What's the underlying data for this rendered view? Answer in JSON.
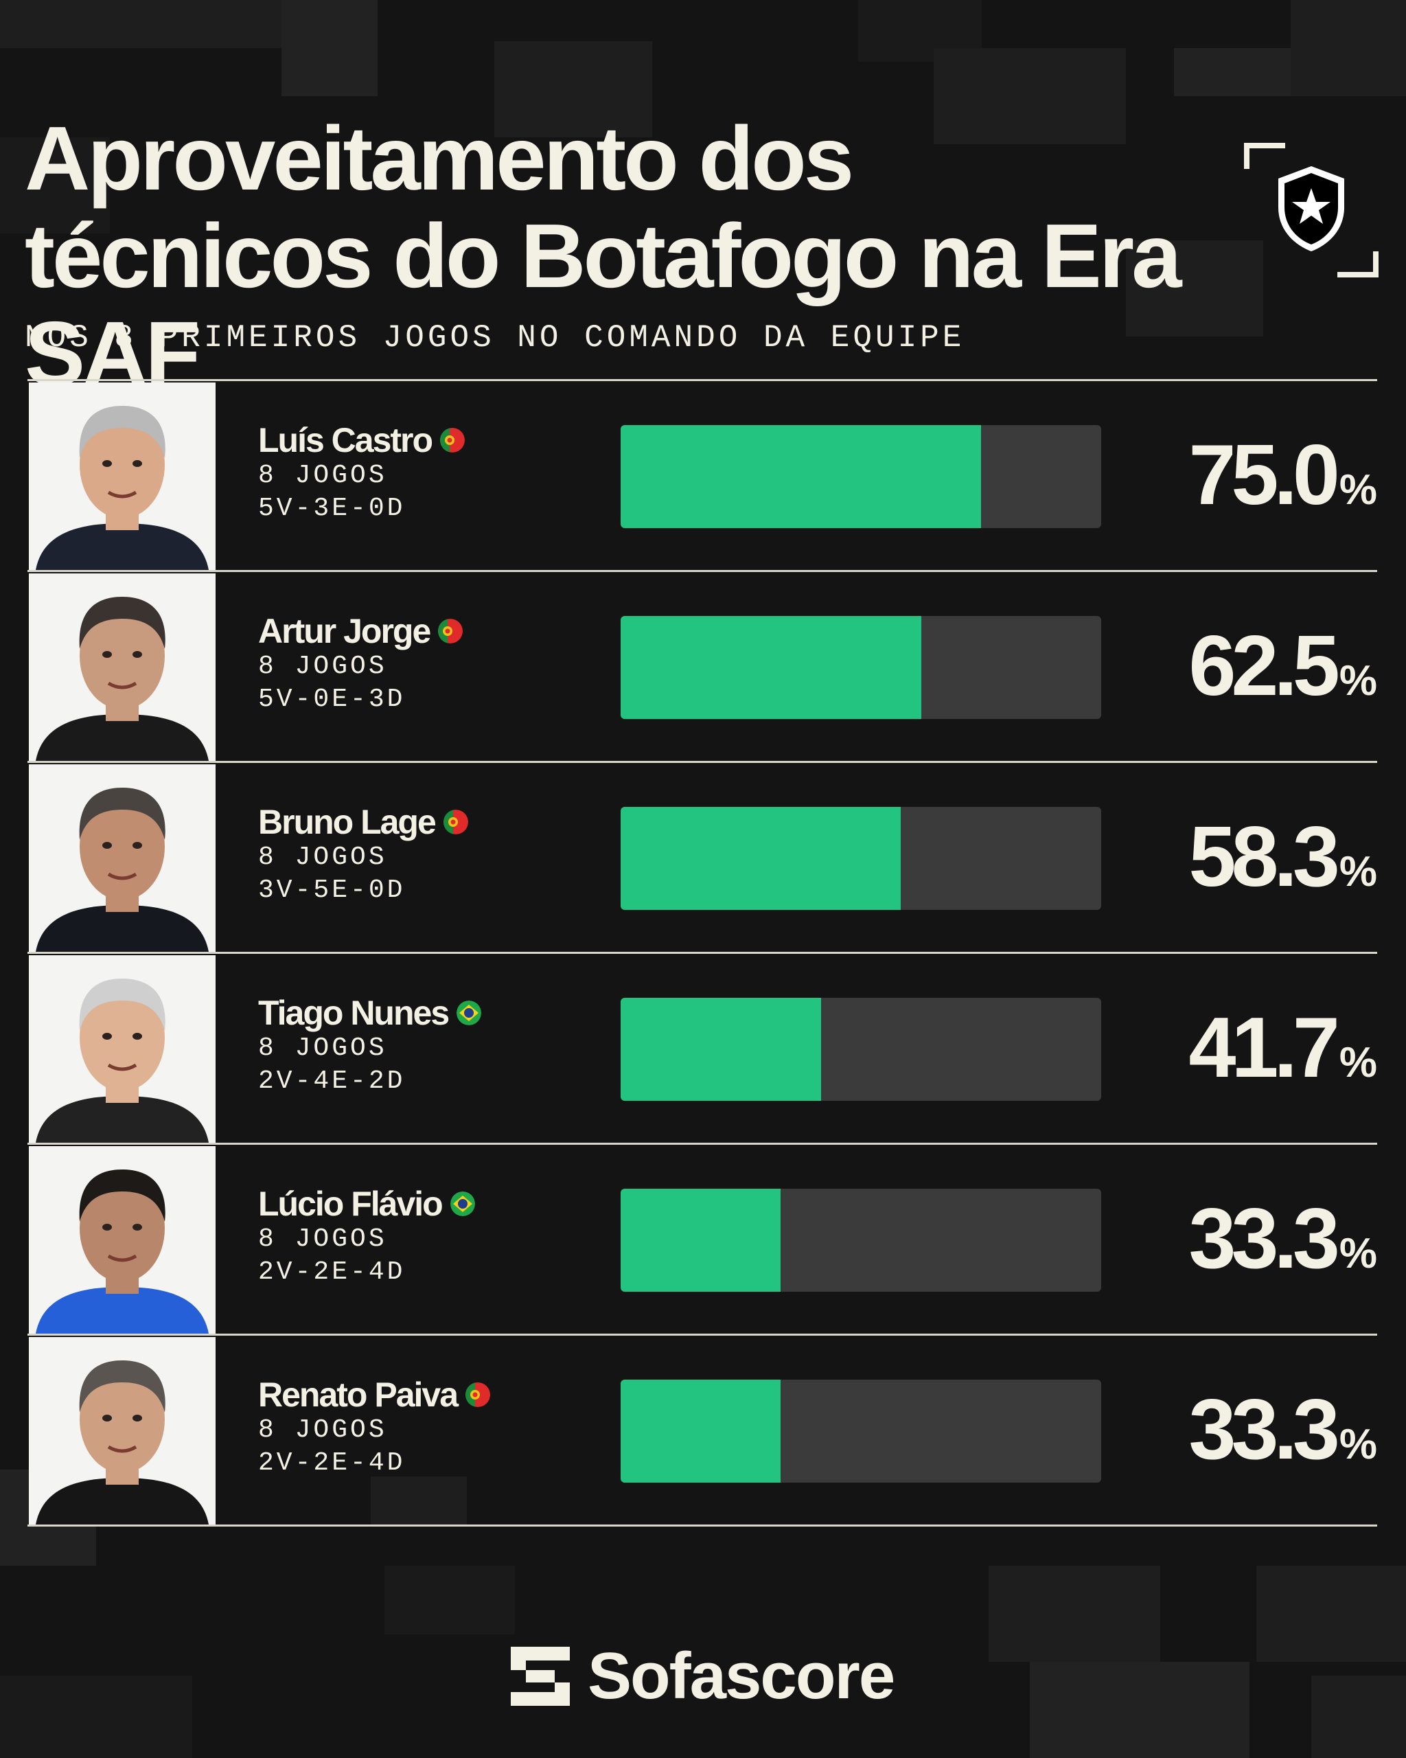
{
  "header": {
    "title": "Aproveitamento dos técnicos do Botafogo na Era SAF",
    "subtitle": "NOS 8 PRIMEIROS JOGOS NO COMANDO DA EQUIPE"
  },
  "colors": {
    "background": "#141414",
    "bar_fill": "#22c47f",
    "bar_track": "#3b3b3b",
    "text": "#f3f0e4"
  },
  "chart_data": {
    "type": "bar",
    "orientation": "horizontal",
    "title": "Aproveitamento dos técnicos do Botafogo na Era SAF",
    "subtitle": "NOS 8 PRIMEIROS JOGOS NO COMANDO DA EQUIPE",
    "xlim": [
      0,
      100
    ],
    "unit": "%",
    "categories": [
      "Luís Castro",
      "Artur Jorge",
      "Bruno Lage",
      "Tiago Nunes",
      "Lúcio Flávio",
      "Renato Paiva"
    ],
    "values": [
      75.0,
      62.5,
      58.3,
      41.7,
      33.3,
      33.3
    ],
    "rows": [
      {
        "name": "Luís Castro",
        "flag": "portugal-flag-icon",
        "games": "8 JOGOS",
        "record": "5V-3E-0D",
        "value": 75.0,
        "label": "75.0"
      },
      {
        "name": "Artur Jorge",
        "flag": "portugal-flag-icon",
        "games": "8 JOGOS",
        "record": "5V-0E-3D",
        "value": 62.5,
        "label": "62.5"
      },
      {
        "name": "Bruno Lage",
        "flag": "portugal-flag-icon",
        "games": "8 JOGOS",
        "record": "3V-5E-0D",
        "value": 58.3,
        "label": "58.3"
      },
      {
        "name": "Tiago Nunes",
        "flag": "brazil-flag-icon",
        "games": "8 JOGOS",
        "record": "2V-4E-2D",
        "value": 41.7,
        "label": "41.7"
      },
      {
        "name": "Lúcio Flávio",
        "flag": "brazil-flag-icon",
        "games": "8 JOGOS",
        "record": "2V-2E-4D",
        "value": 33.3,
        "label": "33.3"
      },
      {
        "name": "Renato Paiva",
        "flag": "portugal-flag-icon",
        "games": "8 JOGOS",
        "record": "2V-2E-4D",
        "value": 33.3,
        "label": "33.3"
      }
    ],
    "percent_sign": "%"
  },
  "footer": {
    "brand": "Sofascore"
  }
}
